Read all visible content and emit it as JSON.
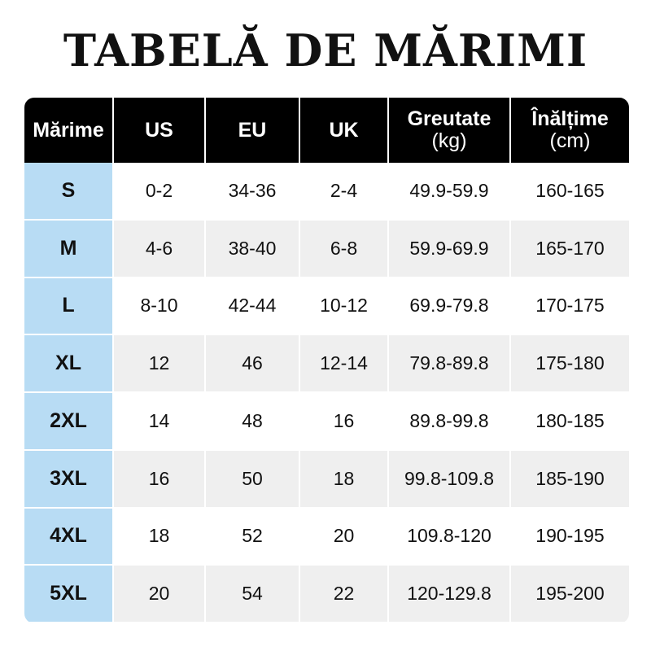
{
  "title": "TABELĂ DE MĂRIMI",
  "colors": {
    "header_bg": "#000000",
    "header_text": "#ffffff",
    "size_column_bg": "#b8dcf4",
    "row_alt_bg": "#efefef"
  },
  "headers": [
    {
      "line1": "Mărime",
      "line2": ""
    },
    {
      "line1": "US",
      "line2": ""
    },
    {
      "line1": "EU",
      "line2": ""
    },
    {
      "line1": "UK",
      "line2": ""
    },
    {
      "line1": "Greutate",
      "line2": "(kg)"
    },
    {
      "line1": "Înălțime",
      "line2": "(cm)"
    }
  ],
  "rows": [
    [
      "S",
      "0-2",
      "34-36",
      "2-4",
      "49.9-59.9",
      "160-165"
    ],
    [
      "M",
      "4-6",
      "38-40",
      "6-8",
      "59.9-69.9",
      "165-170"
    ],
    [
      "L",
      "8-10",
      "42-44",
      "10-12",
      "69.9-79.8",
      "170-175"
    ],
    [
      "XL",
      "12",
      "46",
      "12-14",
      "79.8-89.8",
      "175-180"
    ],
    [
      "2XL",
      "14",
      "48",
      "16",
      "89.8-99.8",
      "180-185"
    ],
    [
      "3XL",
      "16",
      "50",
      "18",
      "99.8-109.8",
      "185-190"
    ],
    [
      "4XL",
      "18",
      "52",
      "20",
      "109.8-120",
      "190-195"
    ],
    [
      "5XL",
      "20",
      "54",
      "22",
      "120-129.8",
      "195-200"
    ]
  ]
}
